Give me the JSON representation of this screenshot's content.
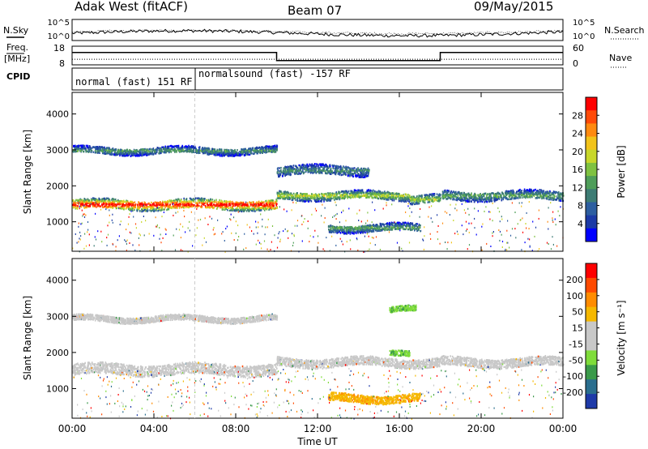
{
  "header": {
    "station": "Adak West (fitACF)",
    "beam": "Beam 07",
    "date": "09/May/2015"
  },
  "side_labels": {
    "nsky": "N.Sky",
    "freq_line1": "Freq.",
    "freq_line2": "[MHz]",
    "cpid": "CPID",
    "nsearch": "N.Search",
    "nave": "Nave"
  },
  "chart_data": [
    {
      "type": "line",
      "name": "noise",
      "left_ticks": [
        "10^5",
        "10^0"
      ],
      "right_ticks": [
        "10^5",
        "10^0"
      ],
      "series": [
        {
          "name": "N.Sky",
          "style": "solid"
        },
        {
          "name": "N.Search",
          "style": "dotted"
        }
      ]
    },
    {
      "type": "line",
      "name": "frequency",
      "left_ticks": [
        "18",
        "8"
      ],
      "right_ticks": [
        "60",
        "0"
      ],
      "x_hours": [
        0,
        10,
        10,
        18,
        18,
        24
      ],
      "freq_mhz": [
        14.6,
        14.6,
        10.3,
        10.3,
        14.6,
        14.6
      ],
      "ylim": [
        8,
        18
      ],
      "nave_approx": 18
    },
    {
      "type": "table",
      "name": "cpid",
      "segments": [
        {
          "label": "normal (fast) 151 RF",
          "start_hour": 0,
          "end_hour": 6
        },
        {
          "label": "normalsound (fast) -157 RF",
          "start_hour": 6,
          "end_hour": 24
        }
      ]
    },
    {
      "type": "heatmap",
      "name": "power",
      "ylabel": "Slant Range [km]",
      "ylim": [
        180,
        4600
      ],
      "yticks": [
        "4000",
        "3000",
        "2000",
        "1000"
      ],
      "ytick_values": [
        4000,
        3000,
        2000,
        1000
      ],
      "colorbar_label": "Power [dB]",
      "colorbar_ticks": [
        "28",
        "24",
        "20",
        "16",
        "12",
        "8",
        "4"
      ],
      "colorbar_colors": [
        "#0000ff",
        "#1c3aa6",
        "#2d5ea0",
        "#3d7c74",
        "#4f9e5a",
        "#7fc241",
        "#c8d72a",
        "#f2c31a",
        "#ff8a10",
        "#ff4a08",
        "#ff0000"
      ],
      "bands": [
        {
          "start": 0,
          "end": 10,
          "center": 1500,
          "width": 260,
          "power": 26
        },
        {
          "start": 0,
          "end": 10,
          "center": 3000,
          "width": 180,
          "power": 10
        },
        {
          "start": 10,
          "end": 16.5,
          "center": 1750,
          "width": 220,
          "power": 15
        },
        {
          "start": 16.5,
          "end": 18,
          "center": 1650,
          "width": 220,
          "power": 14
        },
        {
          "start": 18,
          "end": 24,
          "center": 1750,
          "width": 240,
          "power": 11
        },
        {
          "start": 10,
          "end": 14.5,
          "center": 2450,
          "width": 260,
          "power": 9
        },
        {
          "start": 12.5,
          "end": 17,
          "center": 850,
          "width": 200,
          "power": 11
        }
      ]
    },
    {
      "type": "heatmap",
      "name": "velocity",
      "ylabel": "Slant Range [km]",
      "ylim": [
        180,
        4600
      ],
      "yticks": [
        "4000",
        "3000",
        "2000",
        "1000"
      ],
      "ytick_values": [
        4000,
        3000,
        2000,
        1000
      ],
      "colorbar_label": "Velocity [m s⁻¹]",
      "colorbar_ticks": [
        "200",
        "100",
        "50",
        "15",
        "-15",
        "-50",
        "-100",
        "-200"
      ],
      "colorbar_colors": [
        "#1e3aa8",
        "#2a6e8e",
        "#3a9a4a",
        "#7fdc3a",
        "#c8c8c8",
        "#c8c8c8",
        "#f5b800",
        "#ff8c00",
        "#ff4a00",
        "#ff0000"
      ],
      "bands": [
        {
          "start": 0,
          "end": 10,
          "center": 1550,
          "width": 300,
          "vel": 0
        },
        {
          "start": 0,
          "end": 10,
          "center": 2950,
          "width": 160,
          "vel": 0
        },
        {
          "start": 10,
          "end": 18,
          "center": 1750,
          "width": 240,
          "vel": 0
        },
        {
          "start": 18,
          "end": 24,
          "center": 1750,
          "width": 240,
          "vel": 0
        },
        {
          "start": 12.5,
          "end": 17,
          "center": 750,
          "width": 220,
          "vel": -60
        },
        {
          "start": 15.5,
          "end": 16.8,
          "center": 3200,
          "width": 150,
          "vel": 40
        },
        {
          "start": 15.5,
          "end": 16.5,
          "center": 1950,
          "width": 150,
          "vel": 30
        }
      ]
    }
  ],
  "xaxis": {
    "label": "Time UT",
    "ticks": [
      "00:00",
      "04:00",
      "08:00",
      "12:00",
      "16:00",
      "20:00",
      "00:00"
    ],
    "tick_hours": [
      0,
      4,
      8,
      12,
      16,
      20,
      24
    ]
  }
}
